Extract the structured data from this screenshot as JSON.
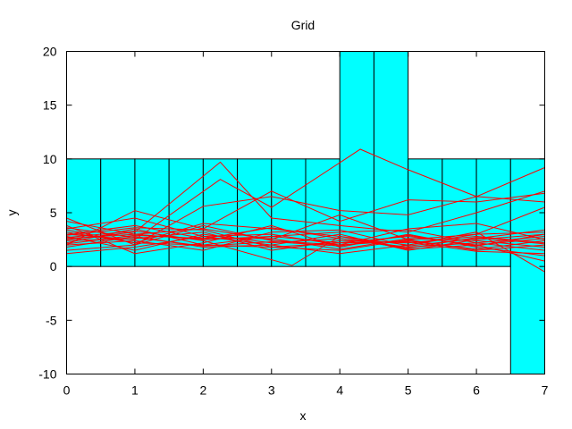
{
  "chart_data": {
    "type": "line",
    "title": "Grid",
    "xlabel": "x",
    "ylabel": "y",
    "xlim": [
      0,
      7
    ],
    "ylim": [
      -10,
      20
    ],
    "xticks": [
      0,
      1,
      2,
      3,
      4,
      5,
      6,
      7
    ],
    "xtick_labels": [
      "0",
      "1",
      "2",
      "3",
      "4",
      "5",
      "6",
      "7"
    ],
    "yticks": [
      -10,
      -5,
      0,
      5,
      10,
      15,
      20
    ],
    "ytick_labels": [
      "-10",
      "-5",
      "0",
      "5",
      "10",
      "15",
      "20"
    ],
    "grid_fill_color": "#00ffff",
    "line_color": "#ff0000",
    "grid_columns": [
      {
        "x0": 0.0,
        "x1": 0.5,
        "y0": 0,
        "y1": 10
      },
      {
        "x0": 0.5,
        "x1": 1.0,
        "y0": 0,
        "y1": 10
      },
      {
        "x0": 1.0,
        "x1": 1.5,
        "y0": 0,
        "y1": 10
      },
      {
        "x0": 1.5,
        "x1": 2.0,
        "y0": 0,
        "y1": 10
      },
      {
        "x0": 2.0,
        "x1": 2.5,
        "y0": 0,
        "y1": 10
      },
      {
        "x0": 2.5,
        "x1": 3.0,
        "y0": 0,
        "y1": 10
      },
      {
        "x0": 3.0,
        "x1": 3.5,
        "y0": 0,
        "y1": 10
      },
      {
        "x0": 3.5,
        "x1": 4.0,
        "y0": 0,
        "y1": 10
      },
      {
        "x0": 4.0,
        "x1": 4.5,
        "y0": 0,
        "y1": 20
      },
      {
        "x0": 4.5,
        "x1": 5.0,
        "y0": 0,
        "y1": 20
      },
      {
        "x0": 5.0,
        "x1": 5.5,
        "y0": 0,
        "y1": 10
      },
      {
        "x0": 5.5,
        "x1": 6.0,
        "y0": 0,
        "y1": 10
      },
      {
        "x0": 6.0,
        "x1": 6.5,
        "y0": 0,
        "y1": 10
      },
      {
        "x0": 6.5,
        "x1": 7.0,
        "y0": -10,
        "y1": 10
      }
    ],
    "series": [
      {
        "x": [
          0,
          1,
          2.25,
          3,
          4,
          5,
          6,
          7
        ],
        "values": [
          2.5,
          3.2,
          9.7,
          4.5,
          3.8,
          3.2,
          5.0,
          7.0
        ]
      },
      {
        "x": [
          0,
          1,
          2.25,
          3,
          4.3,
          5,
          6,
          7
        ],
        "values": [
          3.0,
          2.5,
          8.1,
          5.5,
          10.9,
          9.0,
          6.5,
          9.2
        ]
      },
      {
        "x": [
          0,
          1,
          2,
          3,
          4,
          5,
          6,
          7
        ],
        "values": [
          2.0,
          5.2,
          3.5,
          7.0,
          4.2,
          6.2,
          6.0,
          6.8
        ]
      },
      {
        "x": [
          0,
          1,
          2,
          3,
          4,
          5,
          6,
          7
        ],
        "values": [
          1.5,
          2.0,
          5.6,
          6.5,
          5.2,
          4.8,
          6.5,
          6.0
        ]
      },
      {
        "x": [
          0,
          1,
          2,
          3,
          4,
          5,
          6,
          7
        ],
        "values": [
          4.2,
          3.0,
          3.5,
          2.5,
          4.8,
          2.5,
          3.0,
          5.5
        ]
      },
      {
        "x": [
          0,
          1,
          2,
          3,
          4,
          5,
          6,
          7
        ],
        "values": [
          3.5,
          4.5,
          2.8,
          3.0,
          2.0,
          3.5,
          4.0,
          2.5
        ]
      },
      {
        "x": [
          0,
          1,
          2,
          3,
          4,
          5,
          6,
          7
        ],
        "values": [
          2.8,
          1.5,
          3.0,
          2.2,
          2.6,
          1.8,
          2.2,
          1.5
        ]
      },
      {
        "x": [
          0,
          1,
          2,
          3,
          4,
          5,
          6,
          7
        ],
        "values": [
          2.2,
          3.5,
          2.0,
          1.8,
          1.5,
          2.5,
          1.5,
          2.0
        ]
      },
      {
        "x": [
          0,
          1,
          2,
          3,
          4,
          5,
          6,
          7
        ],
        "values": [
          3.2,
          2.2,
          4.0,
          3.5,
          2.8,
          2.0,
          3.0,
          3.2
        ]
      },
      {
        "x": [
          0,
          1,
          2,
          3,
          4,
          5,
          6,
          7
        ],
        "values": [
          2.6,
          3.0,
          2.5,
          2.8,
          2.2,
          2.8,
          2.0,
          2.6
        ]
      },
      {
        "x": [
          0,
          1,
          2,
          3,
          4,
          5,
          6,
          7
        ],
        "values": [
          1.8,
          2.8,
          1.8,
          2.0,
          3.0,
          1.5,
          2.5,
          3.0
        ]
      },
      {
        "x": [
          0,
          1,
          2,
          3,
          4,
          5,
          6,
          7
        ],
        "values": [
          3.8,
          1.2,
          2.2,
          3.8,
          1.8,
          3.0,
          1.8,
          1.0
        ]
      },
      {
        "x": [
          0,
          1,
          2,
          3,
          4,
          5,
          6,
          7
        ],
        "values": [
          2.4,
          2.6,
          3.2,
          1.5,
          2.4,
          2.2,
          2.8,
          2.2
        ]
      },
      {
        "x": [
          0,
          1,
          2,
          3,
          4,
          5,
          6,
          7
        ],
        "values": [
          3.0,
          3.8,
          2.6,
          2.6,
          1.6,
          2.6,
          2.4,
          1.8
        ]
      },
      {
        "x": [
          0,
          1,
          2,
          3,
          4,
          5,
          6,
          7
        ],
        "values": [
          2.0,
          2.4,
          1.5,
          3.2,
          3.4,
          1.9,
          2.6,
          3.4
        ]
      },
      {
        "x": [
          0,
          1,
          2,
          3,
          4,
          5,
          6,
          7
        ],
        "values": [
          4.5,
          2.0,
          3.8,
          2.4,
          2.0,
          2.4,
          1.6,
          2.4
        ]
      },
      {
        "x": [
          0,
          1,
          2,
          3.3,
          4,
          5,
          6,
          7
        ],
        "values": [
          2.7,
          3.3,
          2.4,
          0.1,
          2.8,
          1.6,
          2.0,
          0.5
        ]
      },
      {
        "x": [
          0,
          1,
          2,
          3,
          4,
          5,
          6,
          7
        ],
        "values": [
          1.2,
          1.8,
          2.8,
          2.0,
          1.2,
          2.0,
          3.2,
          -0.5
        ]
      },
      {
        "x": [
          0,
          1,
          2,
          3,
          4,
          5,
          6,
          7
        ],
        "values": [
          3.4,
          2.2,
          2.0,
          2.8,
          3.2,
          3.4,
          2.2,
          2.8
        ]
      },
      {
        "x": [
          0,
          1,
          2,
          3,
          4,
          5,
          6,
          7
        ],
        "values": [
          2.9,
          3.6,
          3.4,
          1.8,
          2.2,
          2.3,
          1.4,
          1.2
        ]
      },
      {
        "x": [
          0,
          1,
          2,
          3,
          4,
          5,
          6,
          7
        ],
        "values": [
          2.1,
          2.9,
          2.6,
          3.6,
          2.6,
          1.7,
          2.7,
          2.1
        ]
      },
      {
        "x": [
          0,
          1,
          2,
          3,
          4,
          5,
          6,
          7
        ],
        "values": [
          3.6,
          2.7,
          1.9,
          2.3,
          1.9,
          2.9,
          1.9,
          3.0
        ]
      }
    ]
  }
}
